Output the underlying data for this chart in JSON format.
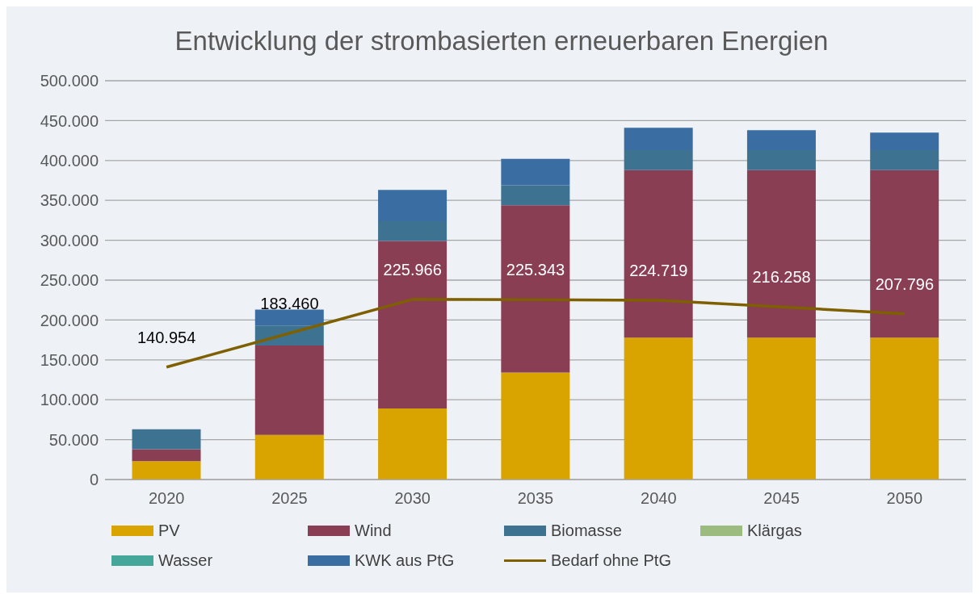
{
  "chart_data": {
    "type": "bar",
    "title": "Entwicklung der strombasierten erneuerbaren Energien",
    "categories": [
      "2020",
      "2025",
      "2030",
      "2035",
      "2040",
      "2045",
      "2050"
    ],
    "stacked": true,
    "series": [
      {
        "name": "PV",
        "color": "#d9a300",
        "values": [
          23000,
          56000,
          89000,
          134000,
          178000,
          178000,
          178000
        ]
      },
      {
        "name": "Wind",
        "color": "#8a3e54",
        "values": [
          15000,
          112000,
          210000,
          210000,
          210000,
          210000,
          210000
        ]
      },
      {
        "name": "Biomasse",
        "color": "#3e7291",
        "values": [
          25000,
          25000,
          25000,
          25000,
          25000,
          25000,
          25000
        ]
      },
      {
        "name": "Klärgas",
        "color": "#9bbb7f",
        "values": [
          0,
          0,
          0,
          0,
          0,
          0,
          0
        ]
      },
      {
        "name": "Wasser",
        "color": "#45a79a",
        "values": [
          0,
          0,
          0,
          0,
          0,
          0,
          0
        ]
      },
      {
        "name": "KWK aus PtG",
        "color": "#3a6ea3",
        "values": [
          0,
          20000,
          39000,
          33000,
          28000,
          25000,
          22000
        ]
      },
      {
        "name": "Bedarf ohne PtG",
        "type": "line",
        "color": "#7f6000",
        "values": [
          140954,
          183460,
          225966,
          225343,
          224719,
          216258,
          207796
        ],
        "value_labels": [
          "140.954",
          "183.460",
          "225.966",
          "225.343",
          "224.719",
          "216.258",
          "207.796"
        ]
      }
    ],
    "ylim": [
      0,
      500000
    ],
    "yticks": [
      {
        "value": 0,
        "label": "0"
      },
      {
        "value": 50000,
        "label": "50.000"
      },
      {
        "value": 100000,
        "label": "100.000"
      },
      {
        "value": 150000,
        "label": "150.000"
      },
      {
        "value": 200000,
        "label": "200.000"
      },
      {
        "value": 250000,
        "label": "250.000"
      },
      {
        "value": 300000,
        "label": "300.000"
      },
      {
        "value": 350000,
        "label": "350.000"
      },
      {
        "value": 400000,
        "label": "400.000"
      },
      {
        "value": 450000,
        "label": "450.000"
      },
      {
        "value": 500000,
        "label": "500.000"
      }
    ],
    "grid": "y",
    "legend": "bottom",
    "marker": "none"
  }
}
